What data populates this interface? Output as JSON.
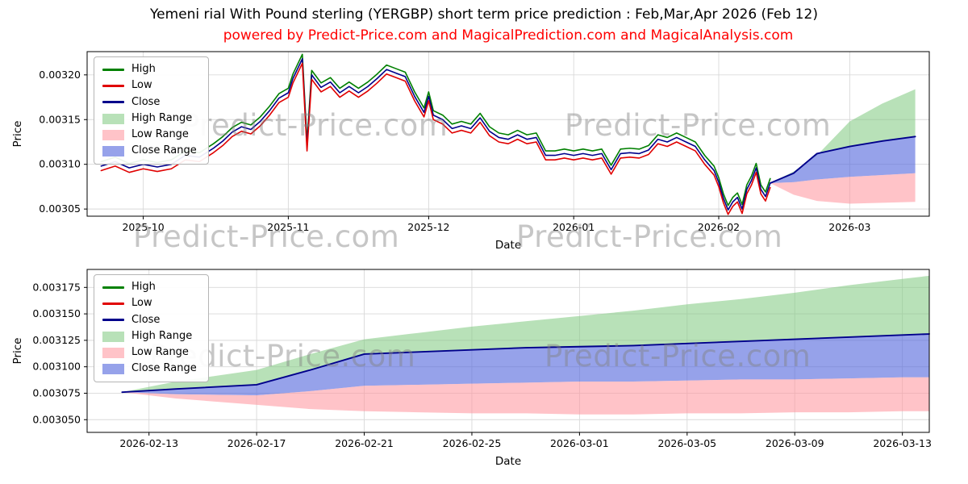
{
  "figure": {
    "title": "Yemeni rial With Pound sterling (YERGBP) short term price prediction : Feb,Mar,Apr 2026 (Feb 12)",
    "subtitle": "powered by Predict-Price.com and MagicalPrediction.com and MagicalAnalysis.com",
    "watermark_text": "Predict-Price.com",
    "colors": {
      "subtitle_color": "#ff0000",
      "grid_color": "#d9d9d9",
      "spine_color": "#000000",
      "watermark_color": "rgba(128,128,128,0.45)",
      "high_line": "#008000",
      "low_line": "#e00000",
      "close_line": "#00008b",
      "high_range_fill": "rgba(125,200,125,0.55)",
      "low_range_fill": "rgba(255,145,155,0.55)",
      "close_range_fill": "rgba(80,100,220,0.6)"
    }
  },
  "chart_data": [
    {
      "id": "top",
      "type": "line",
      "title": "",
      "xlabel": "Date",
      "ylabel": "Price",
      "xlim": [
        -3,
        177
      ],
      "ylim": [
        0.003042,
        0.003226
      ],
      "grid": true,
      "legend_position": "upper-left",
      "xticks": {
        "values": [
          9,
          40,
          70,
          101,
          132,
          160
        ],
        "labels": [
          "2025-10",
          "2025-11",
          "2025-12",
          "2026-01",
          "2026-02",
          "2026-03"
        ]
      },
      "yticks": {
        "values": [
          0.00305,
          0.0031,
          0.00315,
          0.0032
        ],
        "labels": [
          "0.00305",
          "0.00310",
          "0.00315",
          "0.00320"
        ]
      },
      "legend": [
        {
          "label": "High",
          "swatch": "line",
          "color": "#008000"
        },
        {
          "label": "Low",
          "swatch": "line",
          "color": "#e00000"
        },
        {
          "label": "Close",
          "swatch": "line",
          "color": "#00008b"
        },
        {
          "label": "High Range",
          "swatch": "patch",
          "color": "rgba(125,200,125,0.55)"
        },
        {
          "label": "Low Range",
          "swatch": "patch",
          "color": "rgba(255,145,155,0.55)"
        },
        {
          "label": "Close Range",
          "swatch": "patch",
          "color": "rgba(80,100,220,0.6)"
        }
      ],
      "historical": {
        "x_origin_date": "2025-09-22",
        "x": [
          0,
          3,
          6,
          9,
          12,
          15,
          18,
          21,
          24,
          26,
          28,
          30,
          32,
          34,
          36,
          38,
          40,
          41,
          43,
          44,
          45,
          47,
          49,
          51,
          53,
          55,
          57,
          59,
          61,
          63,
          65,
          67,
          69,
          70,
          71,
          73,
          75,
          77,
          79,
          81,
          83,
          85,
          87,
          89,
          91,
          93,
          95,
          97,
          99,
          101,
          103,
          105,
          107,
          109,
          111,
          113,
          115,
          117,
          119,
          121,
          123,
          125,
          127,
          129,
          131,
          132,
          133,
          134,
          135,
          136,
          137,
          138,
          139,
          140,
          141,
          142,
          143
        ],
        "close": [
          0.003098,
          0.003103,
          0.003096,
          0.0031,
          0.003097,
          0.0031,
          0.00311,
          0.003108,
          0.003118,
          0.003126,
          0.003136,
          0.003142,
          0.003139,
          0.003148,
          0.00316,
          0.003174,
          0.00318,
          0.003196,
          0.003218,
          0.00312,
          0.0032,
          0.003186,
          0.003192,
          0.00318,
          0.003187,
          0.00318,
          0.003187,
          0.003196,
          0.003206,
          0.003202,
          0.003198,
          0.003176,
          0.003158,
          0.003176,
          0.003155,
          0.00315,
          0.00314,
          0.003143,
          0.00314,
          0.003152,
          0.003137,
          0.00313,
          0.003128,
          0.003133,
          0.003128,
          0.00313,
          0.00311,
          0.00311,
          0.003112,
          0.00311,
          0.003112,
          0.00311,
          0.003112,
          0.003094,
          0.003112,
          0.003113,
          0.003112,
          0.003116,
          0.003128,
          0.003125,
          0.00313,
          0.003125,
          0.00312,
          0.003105,
          0.003093,
          0.00308,
          0.003062,
          0.003049,
          0.003058,
          0.003063,
          0.00305,
          0.003072,
          0.003082,
          0.003096,
          0.003072,
          0.003064,
          0.003079
        ],
        "high_offset": 5e-06,
        "low_offset": 5e-06
      },
      "prediction": {
        "x": [
          143,
          148,
          153,
          160,
          167,
          174
        ],
        "high": [
          0.003079,
          0.003092,
          0.00311,
          0.003148,
          0.003168,
          0.003184
        ],
        "close": [
          0.003079,
          0.00309,
          0.003112,
          0.00312,
          0.003126,
          0.003131
        ],
        "close_lower": [
          0.003079,
          0.00308,
          0.003083,
          0.003086,
          0.003088,
          0.00309
        ],
        "low": [
          0.003079,
          0.003066,
          0.003059,
          0.003056,
          0.003057,
          0.003058
        ]
      }
    },
    {
      "id": "bottom",
      "type": "line",
      "title": "",
      "xlabel": "Date",
      "ylabel": "Price",
      "xlim": [
        -1.3,
        30
      ],
      "ylim": [
        0.003038,
        0.003192
      ],
      "grid": true,
      "legend_position": "upper-left",
      "xticks": {
        "values": [
          1,
          5,
          9,
          13,
          17,
          21,
          25,
          29
        ],
        "labels": [
          "2026-02-13",
          "2026-02-17",
          "2026-02-21",
          "2026-02-25",
          "2026-03-01",
          "2026-03-05",
          "2026-03-09",
          "2026-03-13"
        ]
      },
      "yticks": {
        "values": [
          0.00305,
          0.003075,
          0.0031,
          0.003125,
          0.00315,
          0.003175
        ],
        "labels": [
          "0.003050",
          "0.003075",
          "0.003100",
          "0.003125",
          "0.003150",
          "0.003175"
        ]
      },
      "legend": [
        {
          "label": "High",
          "swatch": "line",
          "color": "#008000"
        },
        {
          "label": "Low",
          "swatch": "line",
          "color": "#e00000"
        },
        {
          "label": "Close",
          "swatch": "line",
          "color": "#00008b"
        },
        {
          "label": "High Range",
          "swatch": "patch",
          "color": "rgba(125,200,125,0.55)"
        },
        {
          "label": "Low Range",
          "swatch": "patch",
          "color": "rgba(255,145,155,0.55)"
        },
        {
          "label": "Close Range",
          "swatch": "patch",
          "color": "rgba(80,100,220,0.6)"
        }
      ],
      "prediction": {
        "x_origin_date": "2026-02-12",
        "x": [
          0,
          2,
          5,
          7,
          9,
          11,
          13,
          15,
          17,
          19,
          21,
          23,
          25,
          27,
          29,
          30
        ],
        "high": [
          0.003076,
          0.003086,
          0.003097,
          0.003112,
          0.003126,
          0.003132,
          0.003138,
          0.003143,
          0.003148,
          0.003153,
          0.003159,
          0.003164,
          0.00317,
          0.003177,
          0.003183,
          0.003186
        ],
        "close": [
          0.003076,
          0.003079,
          0.003083,
          0.003097,
          0.003112,
          0.003114,
          0.003116,
          0.003118,
          0.003119,
          0.00312,
          0.003122,
          0.003124,
          0.003126,
          0.003128,
          0.00313,
          0.003131
        ],
        "close_lower": [
          0.003076,
          0.003074,
          0.003073,
          0.003077,
          0.003082,
          0.003083,
          0.003084,
          0.003085,
          0.003086,
          0.003086,
          0.003087,
          0.003088,
          0.003088,
          0.003089,
          0.00309,
          0.00309
        ],
        "low": [
          0.003076,
          0.00307,
          0.003064,
          0.00306,
          0.003058,
          0.003057,
          0.003056,
          0.003056,
          0.003055,
          0.003055,
          0.003056,
          0.003056,
          0.003057,
          0.003057,
          0.003058,
          0.003058
        ]
      }
    }
  ]
}
